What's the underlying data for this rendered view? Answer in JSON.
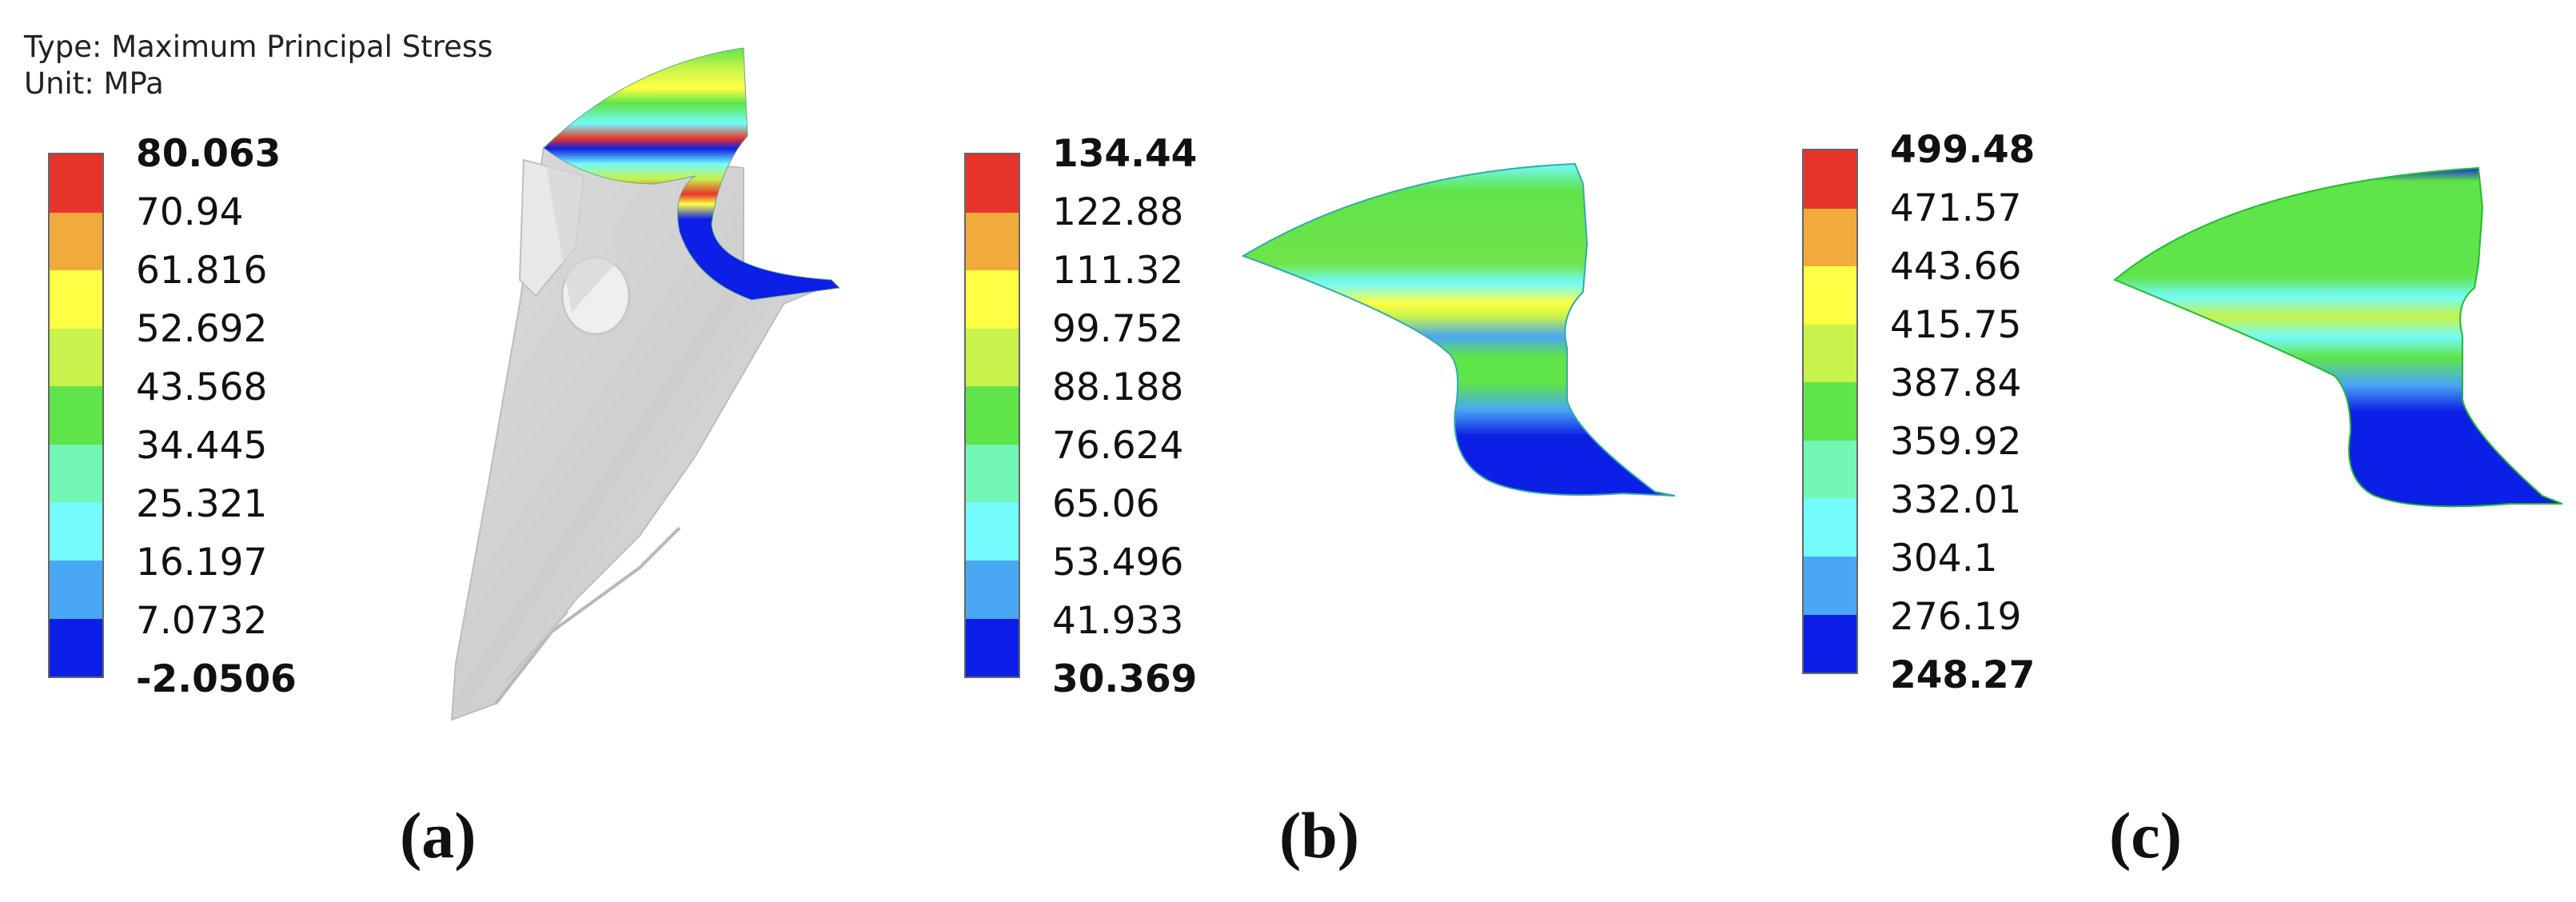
{
  "header": {
    "type_line": "Type: Maximum Principal Stress",
    "unit_line": "Unit: MPa"
  },
  "colormap": [
    "#e8332a",
    "#f1ab3c",
    "#ffff44",
    "#c7f34a",
    "#5fe44a",
    "#72f7b7",
    "#74fbfb",
    "#4aa7f3",
    "#0b1fe6"
  ],
  "panels": [
    {
      "caption": "(a)",
      "legend_values": [
        "80.063",
        "70.94",
        "61.816",
        "52.692",
        "43.568",
        "34.445",
        "25.321",
        "16.197",
        "7.0732",
        "-2.0506"
      ]
    },
    {
      "caption": "(b)",
      "legend_values": [
        "134.44",
        "122.88",
        "111.32",
        "99.752",
        "88.188",
        "76.624",
        "65.06",
        "53.496",
        "41.933",
        "30.369"
      ]
    },
    {
      "caption": "(c)",
      "legend_values": [
        "499.48",
        "471.57",
        "443.66",
        "415.75",
        "387.84",
        "359.92",
        "332.01",
        "304.1",
        "276.19",
        "248.27"
      ]
    }
  ]
}
